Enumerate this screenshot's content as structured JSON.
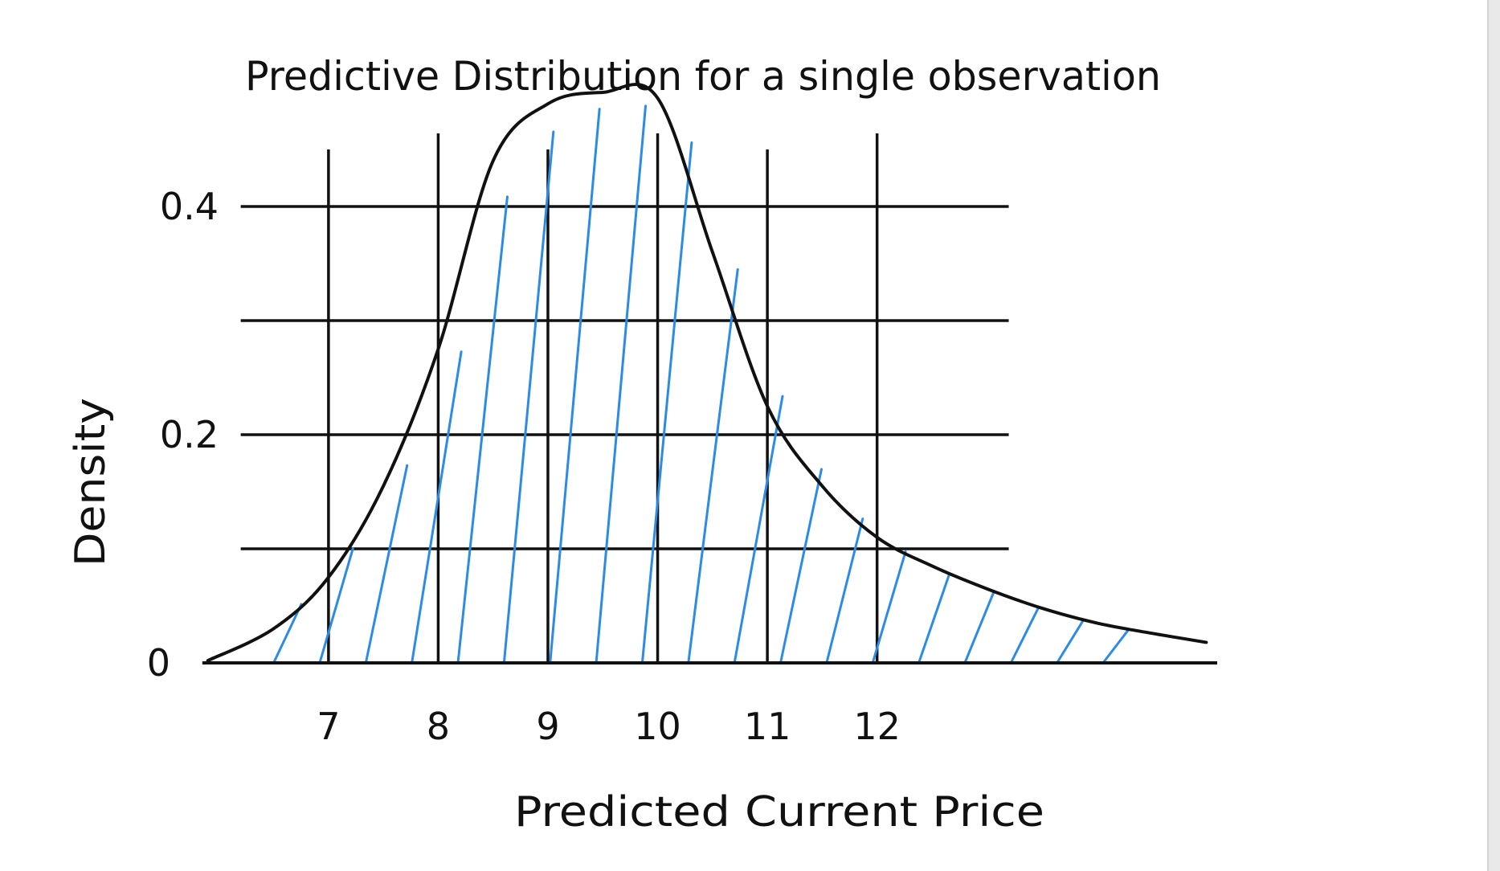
{
  "chart_data": {
    "type": "area",
    "title": "Predictive Distribution for a single observation",
    "xlabel": "Predicted Current Price",
    "ylabel": "Density",
    "x_ticks": [
      "7",
      "8",
      "9",
      "10",
      "11",
      "12"
    ],
    "y_ticks": [
      "0",
      "0.2",
      "0.4"
    ],
    "xlim": [
      5.8,
      15.1
    ],
    "ylim": [
      0,
      0.5
    ],
    "grid": true,
    "shading": "diagonal hatch",
    "series": [
      {
        "x": [
          5.9,
          6.5,
          7.0,
          7.5,
          8.0,
          8.5,
          9.0,
          9.5,
          10.0,
          10.5,
          11.0,
          11.5,
          12.0,
          12.5,
          13.0,
          13.5,
          14.0,
          14.5,
          15.0
        ],
        "values": [
          0.002,
          0.03,
          0.075,
          0.155,
          0.275,
          0.44,
          0.49,
          0.5,
          0.495,
          0.36,
          0.225,
          0.155,
          0.11,
          0.085,
          0.065,
          0.048,
          0.035,
          0.026,
          0.018
        ]
      }
    ]
  },
  "colors": {
    "ink": "#111111",
    "hatch": "#2b8be6",
    "background": "#ffffff"
  }
}
